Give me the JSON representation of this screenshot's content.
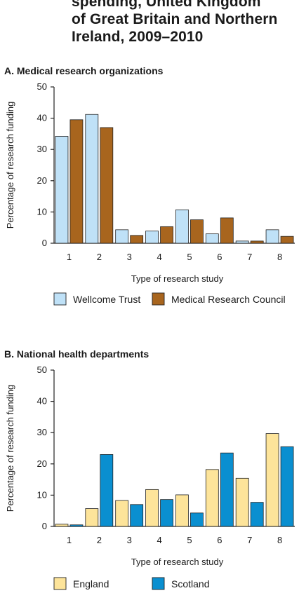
{
  "title_lines": [
    "spending, United Kingdom",
    "of Great Britain and Northern",
    "Ireland, 2009–2010"
  ],
  "colors": {
    "wellcome": "#bfe1f7",
    "mrc": "#a8651e",
    "england": "#fde49a",
    "scotland": "#0a8fd0",
    "axis": "#222222"
  },
  "chart_data": [
    {
      "type": "bar",
      "title": "A. Medical research organizations",
      "categories": [
        "1",
        "2",
        "3",
        "4",
        "5",
        "6",
        "7",
        "8"
      ],
      "series": [
        {
          "name": "Wellcome Trust",
          "values": [
            34.2,
            41.2,
            4.3,
            3.9,
            10.7,
            3.0,
            0.7,
            4.3
          ]
        },
        {
          "name": "Medical Research Council",
          "values": [
            39.5,
            37.0,
            2.5,
            5.3,
            7.5,
            8.1,
            0.7,
            2.2
          ]
        }
      ],
      "xlabel": "Type of research study",
      "ylabel": "Percentage of research funding",
      "ylim": [
        0,
        50
      ],
      "yticks": [
        "0",
        "10",
        "20",
        "30",
        "40",
        "50"
      ],
      "legend": "bottom"
    },
    {
      "type": "bar",
      "title": "B. National health departments",
      "categories": [
        "1",
        "2",
        "3",
        "4",
        "5",
        "6",
        "7",
        "8"
      ],
      "series": [
        {
          "name": "England",
          "values": [
            0.7,
            5.7,
            8.3,
            11.8,
            10.1,
            18.2,
            15.4,
            29.7
          ]
        },
        {
          "name": "Scotland",
          "values": [
            0.5,
            23.0,
            7.0,
            8.6,
            4.3,
            23.5,
            7.7,
            25.5
          ]
        }
      ],
      "xlabel": "Type of research study",
      "ylabel": "Percentage of research funding",
      "ylim": [
        0,
        50
      ],
      "yticks": [
        "0",
        "10",
        "20",
        "30",
        "40",
        "50"
      ],
      "legend": "bottom"
    }
  ]
}
